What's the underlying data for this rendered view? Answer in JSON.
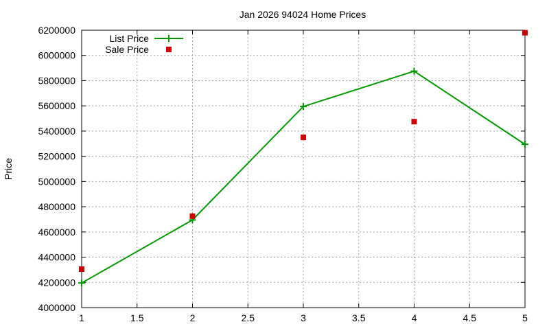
{
  "chart_data": {
    "type": "line",
    "title": "Jan 2026 94024 Home Prices",
    "xlabel": "",
    "ylabel": "Price",
    "xlim": [
      1,
      5
    ],
    "ylim": [
      4000000,
      6200000
    ],
    "x_ticks": [
      "1",
      "1.5",
      "2",
      "2.5",
      "3",
      "3.5",
      "4",
      "4.5",
      "5"
    ],
    "y_ticks": [
      "4000000",
      "4200000",
      "4400000",
      "4600000",
      "4800000",
      "5000000",
      "5200000",
      "5400000",
      "5600000",
      "5800000",
      "6000000",
      "6200000"
    ],
    "grid": true,
    "legend_position": "top-left",
    "series": [
      {
        "name": "List Price",
        "style": "line-with-plus-markers",
        "color": "#009900",
        "x": [
          1,
          2,
          3,
          4,
          5
        ],
        "y": [
          4195000,
          4695000,
          5595000,
          5875000,
          5295000
        ]
      },
      {
        "name": "Sale Price",
        "style": "square-markers",
        "color": "#cc0000",
        "x": [
          1,
          2,
          3,
          4,
          5
        ],
        "y": [
          4305000,
          4725000,
          5350000,
          5475000,
          6180000
        ]
      }
    ]
  }
}
